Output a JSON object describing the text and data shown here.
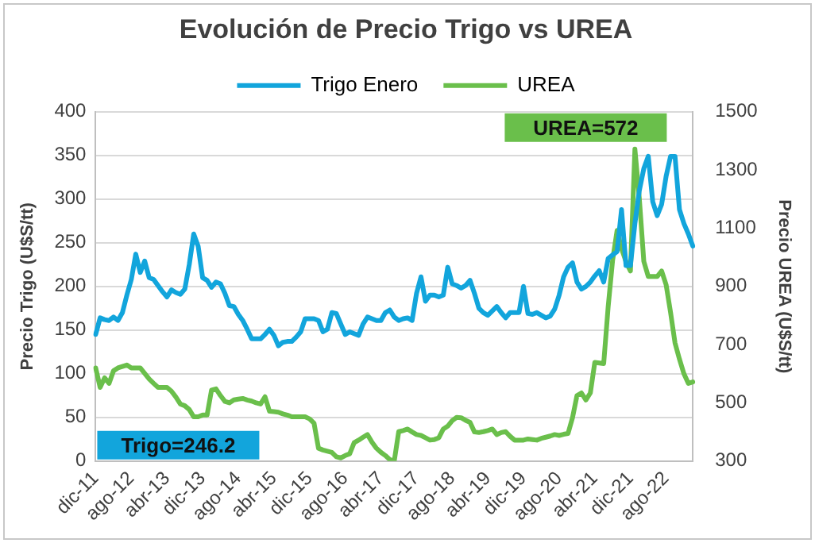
{
  "chart_data": {
    "type": "line",
    "title": "Evolución de Precio Trigo vs UREA",
    "ylabel": "Precio Trigo (U$S/tt)",
    "y2label": "Precio UREA (U$S/tt)",
    "categories": [
      "dic-11",
      null,
      null,
      null,
      null,
      null,
      null,
      null,
      "ago-12",
      null,
      null,
      null,
      null,
      null,
      null,
      null,
      "abr-13",
      null,
      null,
      null,
      null,
      null,
      null,
      null,
      "dic-13",
      null,
      null,
      null,
      null,
      null,
      null,
      null,
      "ago-14",
      null,
      null,
      null,
      null,
      null,
      null,
      null,
      "abr-15",
      null,
      null,
      null,
      null,
      null,
      null,
      null,
      "dic-15",
      null,
      null,
      null,
      null,
      null,
      null,
      null,
      "ago-16",
      null,
      null,
      null,
      null,
      null,
      null,
      null,
      "abr-17",
      null,
      null,
      null,
      null,
      null,
      null,
      null,
      "dic-17",
      null,
      null,
      null,
      null,
      null,
      null,
      null,
      "ago-18",
      null,
      null,
      null,
      null,
      null,
      null,
      null,
      "abr-19",
      null,
      null,
      null,
      null,
      null,
      null,
      null,
      "dic-19",
      null,
      null,
      null,
      null,
      null,
      null,
      null,
      "ago-20",
      null,
      null,
      null,
      null,
      null,
      null,
      null,
      "abr-21",
      null,
      null,
      null,
      null,
      null,
      null,
      null,
      "dic-21",
      null,
      null,
      null,
      null,
      null,
      null,
      null,
      "ago-22",
      null,
      null,
      null,
      null,
      null,
      null
    ],
    "series": [
      {
        "name": "Trigo Enero",
        "color": "#12a5dc",
        "values": [
          145,
          164,
          162,
          161,
          165,
          161,
          170,
          190,
          208,
          237,
          216,
          229,
          210,
          208,
          201,
          194,
          188,
          196,
          193,
          191,
          197,
          225,
          260,
          246,
          210,
          207,
          199,
          205,
          203,
          192,
          178,
          177,
          168,
          161,
          151,
          140,
          140,
          140,
          145,
          151,
          144,
          132,
          136,
          137,
          137,
          142,
          148,
          163,
          163,
          163,
          161,
          148,
          151,
          170,
          169,
          157,
          145,
          148,
          146,
          144,
          157,
          165,
          163,
          161,
          161,
          170,
          173,
          165,
          161,
          163,
          164,
          161,
          192,
          211,
          183,
          190,
          190,
          188,
          190,
          222,
          203,
          201,
          198,
          201,
          207,
          192,
          175,
          170,
          167,
          172,
          177,
          170,
          164,
          170,
          170,
          170,
          200,
          169,
          168,
          170,
          167,
          164,
          166,
          174,
          190,
          211,
          222,
          227,
          205,
          197,
          200,
          205,
          212,
          218,
          205,
          232,
          236,
          240,
          288,
          224,
          224,
          272,
          310,
          335,
          349,
          297,
          281,
          294,
          326,
          349,
          349,
          288,
          272,
          260,
          246.2
        ]
      },
      {
        "name": "UREA",
        "color": "#6abf4b",
        "axis": "y2",
        "values": [
          620,
          553,
          586,
          567,
          610,
          620,
          625,
          630,
          620,
          620,
          620,
          601,
          582,
          567,
          553,
          553,
          553,
          540,
          520,
          496,
          490,
          477,
          452,
          452,
          458,
          458,
          544,
          548,
          525,
          505,
          500,
          510,
          513,
          515,
          510,
          506,
          500,
          496,
          521,
          471,
          470,
          468,
          462,
          458,
          452,
          452,
          452,
          452,
          445,
          430,
          344,
          338,
          334,
          330,
          315,
          311,
          319,
          325,
          363,
          372,
          382,
          391,
          365,
          344,
          330,
          319,
          305,
          300,
          401,
          405,
          410,
          400,
          391,
          388,
          380,
          372,
          374,
          380,
          410,
          420,
          439,
          450,
          449,
          440,
          433,
          400,
          398,
          401,
          405,
          410,
          391,
          398,
          401,
          385,
          372,
          372,
          372,
          376,
          374,
          372,
          378,
          382,
          386,
          391,
          388,
          392,
          395,
          449,
          525,
          534,
          510,
          534,
          639,
          637,
          635,
          830,
          990,
          1092,
          1030,
          985,
          953,
          1372,
          1201,
          986,
          934,
          934,
          934,
          953,
          906,
          811,
          706,
          650,
          600,
          567,
          572
        ]
      }
    ],
    "ylim": [
      0,
      400
    ],
    "yticks": [
      0,
      50,
      100,
      150,
      200,
      250,
      300,
      350,
      400
    ],
    "y2lim": [
      300,
      1500
    ],
    "y2ticks": [
      300,
      500,
      700,
      900,
      1100,
      1300,
      1500
    ],
    "grid": "y",
    "legend": "top",
    "marker": "none",
    "line_style": "solid",
    "annotations": [
      "Trigo=246.2",
      "UREA=572"
    ]
  }
}
